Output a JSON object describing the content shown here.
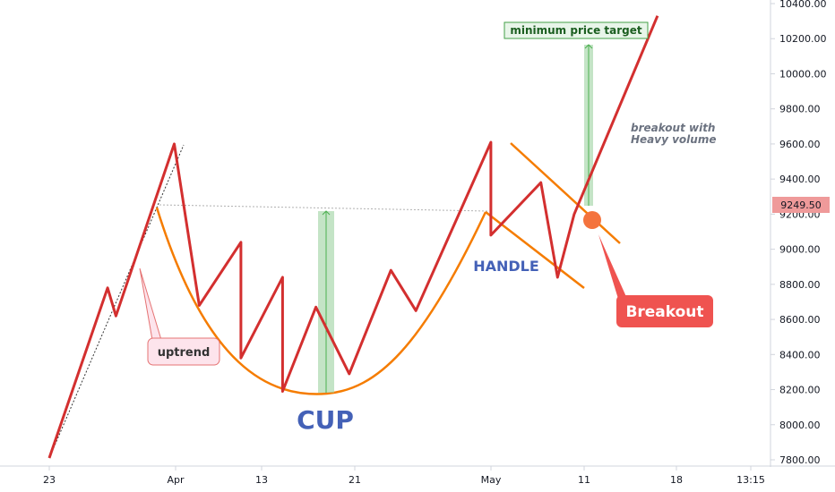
{
  "chart_data": {
    "type": "line",
    "title": "",
    "xlabel": "",
    "ylabel": "",
    "ylim": [
      7750,
      10450
    ],
    "y_ticks": [
      "10400.00",
      "10200.00",
      "10000.00",
      "9800.00",
      "9600.00",
      "9400.00",
      "9200.00",
      "9000.00",
      "8800.00",
      "8600.00",
      "8400.00",
      "8200.00",
      "8000.00",
      "7800.00"
    ],
    "y_tick_values": [
      10400,
      10200,
      10000,
      9800,
      9600,
      9400,
      9200,
      9000,
      8800,
      8600,
      8400,
      8200,
      8000,
      7800
    ],
    "x_ticks": [
      "23",
      "Apr",
      "13",
      "21",
      "May",
      "11",
      "18",
      "13:15"
    ],
    "price_marker": {
      "label": "9249.50",
      "value": 9249.5,
      "color": "#ef9a9a"
    },
    "series": [
      {
        "color": "#d32f2f",
        "points": [
          [
            0,
            7810
          ],
          [
            7,
            8780
          ],
          [
            8,
            8620
          ],
          [
            10,
            8900
          ],
          [
            15,
            9600
          ],
          [
            18,
            8680
          ],
          [
            23,
            9040
          ],
          [
            23,
            8380
          ],
          [
            28,
            8840
          ],
          [
            28,
            8190
          ],
          [
            32,
            8670
          ],
          [
            36,
            8290
          ],
          [
            41,
            8880
          ],
          [
            44,
            8650
          ],
          [
            53,
            9610
          ],
          [
            53,
            9080
          ],
          [
            59,
            9380
          ],
          [
            61,
            8840
          ],
          [
            63,
            9200
          ],
          [
            73,
            10330
          ]
        ]
      }
    ],
    "annotations": {
      "cup_label": "CUP",
      "handle_label": "HANDLE",
      "uptrend_label": "uptrend",
      "breakout_label": "Breakout",
      "breakout_note_line1": "breakout with",
      "breakout_note_line2": "Heavy volume",
      "target_label": "minimum price target"
    },
    "colors": {
      "price_line": "#d32f2f",
      "cup_curve": "#f57c00",
      "measure_fill": "#a5d6a7",
      "measure_stroke": "#4caf50",
      "cup_text": "#4461b7",
      "handle_text": "#4461b7",
      "breakout_bg": "#ef5350",
      "breakout_dot": "#f4733d",
      "uptrend_bg": "#fde4ec",
      "uptrend_border": "#e57373",
      "note_text": "#6b7280",
      "target_bg": "#e8f5e9",
      "target_border": "#43a047",
      "target_text": "#1b5e20"
    }
  }
}
